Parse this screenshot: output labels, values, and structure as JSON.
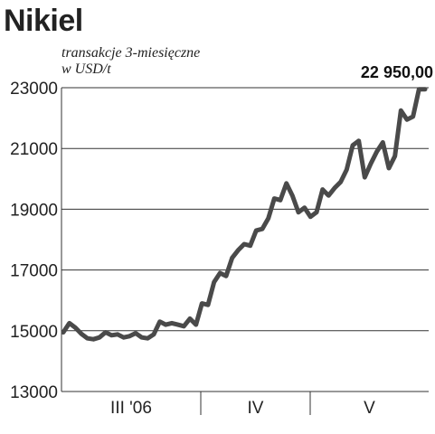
{
  "chart_data": {
    "type": "line",
    "title": "Nikiel",
    "subtitle_lines": [
      "transakcje 3-miesięczne",
      "w USD/t"
    ],
    "last_value_label": "22 950,00",
    "xlabel": "",
    "ylabel": "",
    "ylim": [
      13000,
      23000
    ],
    "yticks": [
      13000,
      15000,
      17000,
      19000,
      21000,
      23000
    ],
    "ytick_labels": [
      "13000",
      "15000",
      "17000",
      "19000",
      "21000",
      "23000"
    ],
    "x_month_labels": [
      "III '06",
      "IV",
      "V"
    ],
    "grid": "horizontal",
    "legend": "none",
    "line_color": "#4a4a4a",
    "series": [
      {
        "values": [
          14950,
          15250,
          15100,
          14900,
          14750,
          14720,
          14780,
          14950,
          14850,
          14880,
          14780,
          14820,
          14920,
          14780,
          14750,
          14880,
          15300,
          15200,
          15250,
          15200,
          15150,
          15400,
          15200,
          15900,
          15850,
          16600,
          16900,
          16800,
          17400,
          17650,
          17850,
          17800,
          18300,
          18350,
          18700,
          19350,
          19300,
          19850,
          19450,
          18900,
          19050,
          18750,
          18900,
          19650,
          19450,
          19700,
          19900,
          20300,
          21100,
          21250,
          20050,
          20500,
          20900,
          21200,
          20350,
          20750,
          22250,
          21950,
          22050,
          22950,
          22950
        ]
      }
    ]
  }
}
